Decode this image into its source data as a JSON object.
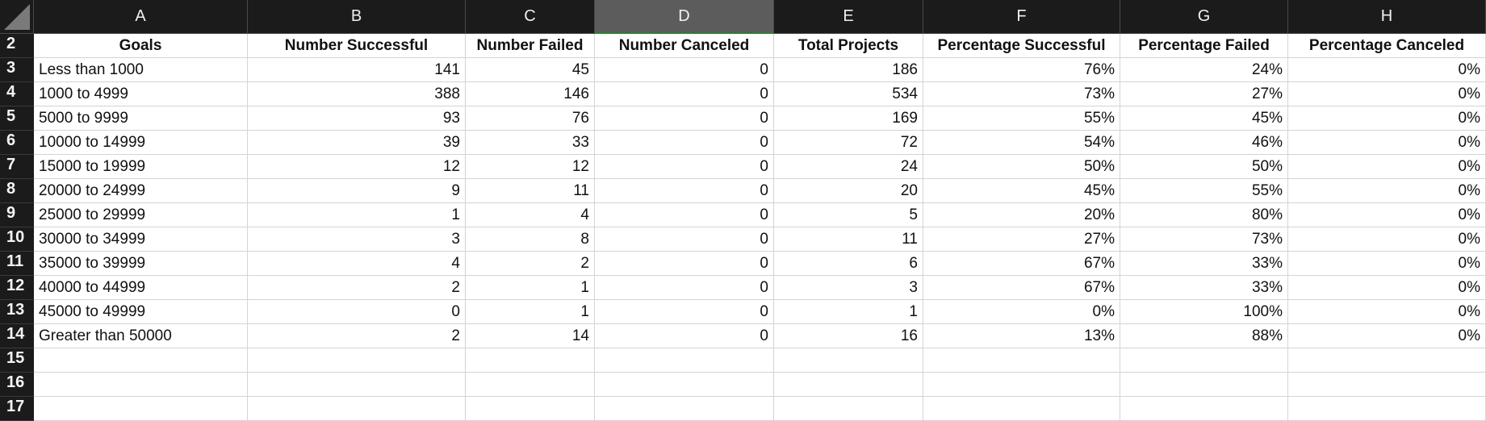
{
  "columns": [
    "A",
    "B",
    "C",
    "D",
    "E",
    "F",
    "G",
    "H"
  ],
  "selected_column": "D",
  "row_numbers": [
    "2",
    "3",
    "4",
    "5",
    "6",
    "7",
    "8",
    "9",
    "10",
    "11",
    "12",
    "13",
    "14",
    "15",
    "16",
    "17"
  ],
  "headers": [
    "Goals",
    "Number Successful",
    "Number Failed",
    "Number Canceled",
    "Total Projects",
    "Percentage Successful",
    "Percentage Failed",
    "Percentage Canceled"
  ],
  "rows": [
    [
      "Less than 1000",
      "141",
      "45",
      "0",
      "186",
      "76%",
      "24%",
      "0%"
    ],
    [
      "1000 to 4999",
      "388",
      "146",
      "0",
      "534",
      "73%",
      "27%",
      "0%"
    ],
    [
      "5000 to 9999",
      "93",
      "76",
      "0",
      "169",
      "55%",
      "45%",
      "0%"
    ],
    [
      "10000 to 14999",
      "39",
      "33",
      "0",
      "72",
      "54%",
      "46%",
      "0%"
    ],
    [
      "15000 to 19999",
      "12",
      "12",
      "0",
      "24",
      "50%",
      "50%",
      "0%"
    ],
    [
      "20000 to 24999",
      "9",
      "11",
      "0",
      "20",
      "45%",
      "55%",
      "0%"
    ],
    [
      "25000 to 29999",
      "1",
      "4",
      "0",
      "5",
      "20%",
      "80%",
      "0%"
    ],
    [
      "30000 to 34999",
      "3",
      "8",
      "0",
      "11",
      "27%",
      "73%",
      "0%"
    ],
    [
      "35000 to 39999",
      "4",
      "2",
      "0",
      "6",
      "67%",
      "33%",
      "0%"
    ],
    [
      "40000 to 44999",
      "2",
      "1",
      "0",
      "3",
      "67%",
      "33%",
      "0%"
    ],
    [
      "45000 to 49999",
      "0",
      "1",
      "0",
      "1",
      "0%",
      "100%",
      "0%"
    ],
    [
      "Greater than 50000",
      "2",
      "14",
      "0",
      "16",
      "13%",
      "88%",
      "0%"
    ],
    [
      "",
      "",
      "",
      "",
      "",
      "",
      "",
      ""
    ],
    [
      "",
      "",
      "",
      "",
      "",
      "",
      "",
      ""
    ],
    [
      "",
      "",
      "",
      "",
      "",
      "",
      "",
      ""
    ]
  ],
  "colors": {
    "header_bg": "#1b1b1b",
    "selected_header_bg": "#5c5c5c",
    "gridline": "#d4d4d4",
    "selection_accent": "#2e7d32"
  }
}
